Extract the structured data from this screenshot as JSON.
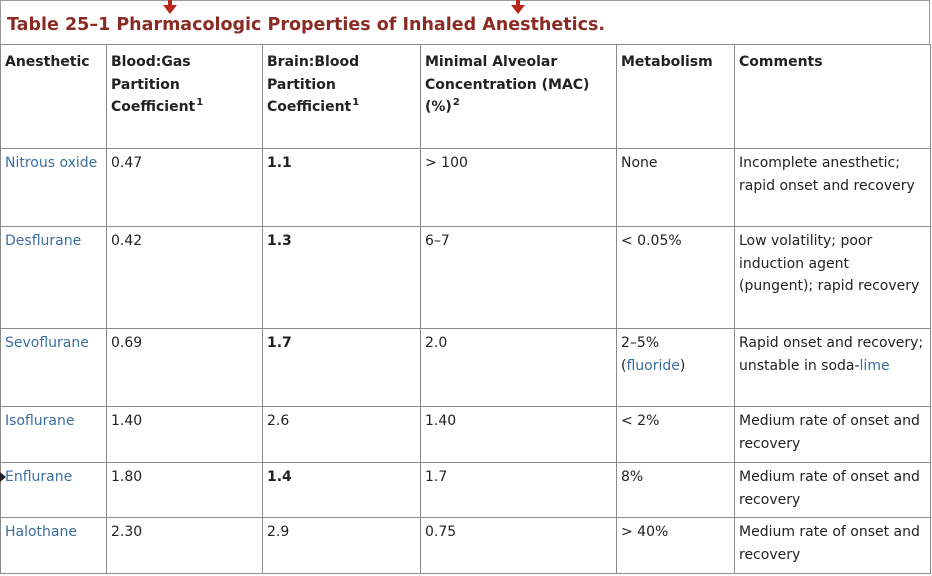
{
  "title": "Table 25–1 Pharmacologic Properties of Inhaled Anesthetics.",
  "headers": {
    "anesthetic": "Anesthetic",
    "blood_gas": "Blood:Gas Partition Coefficient",
    "blood_gas_sup": "1",
    "brain_blood": "Brain:Blood Partition Coefficient",
    "brain_blood_sup": "1",
    "mac": "Minimal Alveolar Concentration (MAC) (%)",
    "mac_sup": "2",
    "metabolism": "Metabolism",
    "comments": "Comments"
  },
  "rows": [
    {
      "name": "Nitrous oxide",
      "blood_gas": "0.47",
      "brain_blood": "1.1",
      "mac": "> 100",
      "metabolism": "None",
      "comments": "Incomplete anesthetic; rapid onset and recovery"
    },
    {
      "name": "Desflurane",
      "blood_gas": "0.42",
      "brain_blood": "1.3",
      "mac": "6–7",
      "metabolism": "< 0.05%",
      "comments": "Low volatility; poor induction agent (pungent); rapid recovery"
    },
    {
      "name": "Sevoflurane",
      "blood_gas": "0.69",
      "brain_blood": "1.7",
      "mac": "2.0",
      "metabolism_a": "2–5%",
      "metabolism_b": "(",
      "metabolism_link": "fluoride",
      "metabolism_c": ")",
      "comments_a": "Rapid onset and recovery; unstable in soda-",
      "comments_link": "lime"
    },
    {
      "name": "Isoflurane",
      "blood_gas": "1.40",
      "brain_blood": "2.6",
      "mac": "1.40",
      "metabolism": "< 2%",
      "comments": "Medium rate of onset and recovery"
    },
    {
      "name": "Enflurane",
      "blood_gas": "1.80",
      "brain_blood": "1.4",
      "mac": "1.7",
      "metabolism": "8%",
      "comments": "Medium rate of onset and recovery"
    },
    {
      "name": "Halothane",
      "blood_gas": "2.30",
      "brain_blood": "2.9",
      "mac": "0.75",
      "metabolism": "> 40%",
      "comments": "Medium rate of onset and recovery"
    }
  ],
  "colors": {
    "title": "#8b2c24",
    "marker": "#b5281b",
    "link": "#3c6e9f",
    "border": "#8a8a8a"
  }
}
